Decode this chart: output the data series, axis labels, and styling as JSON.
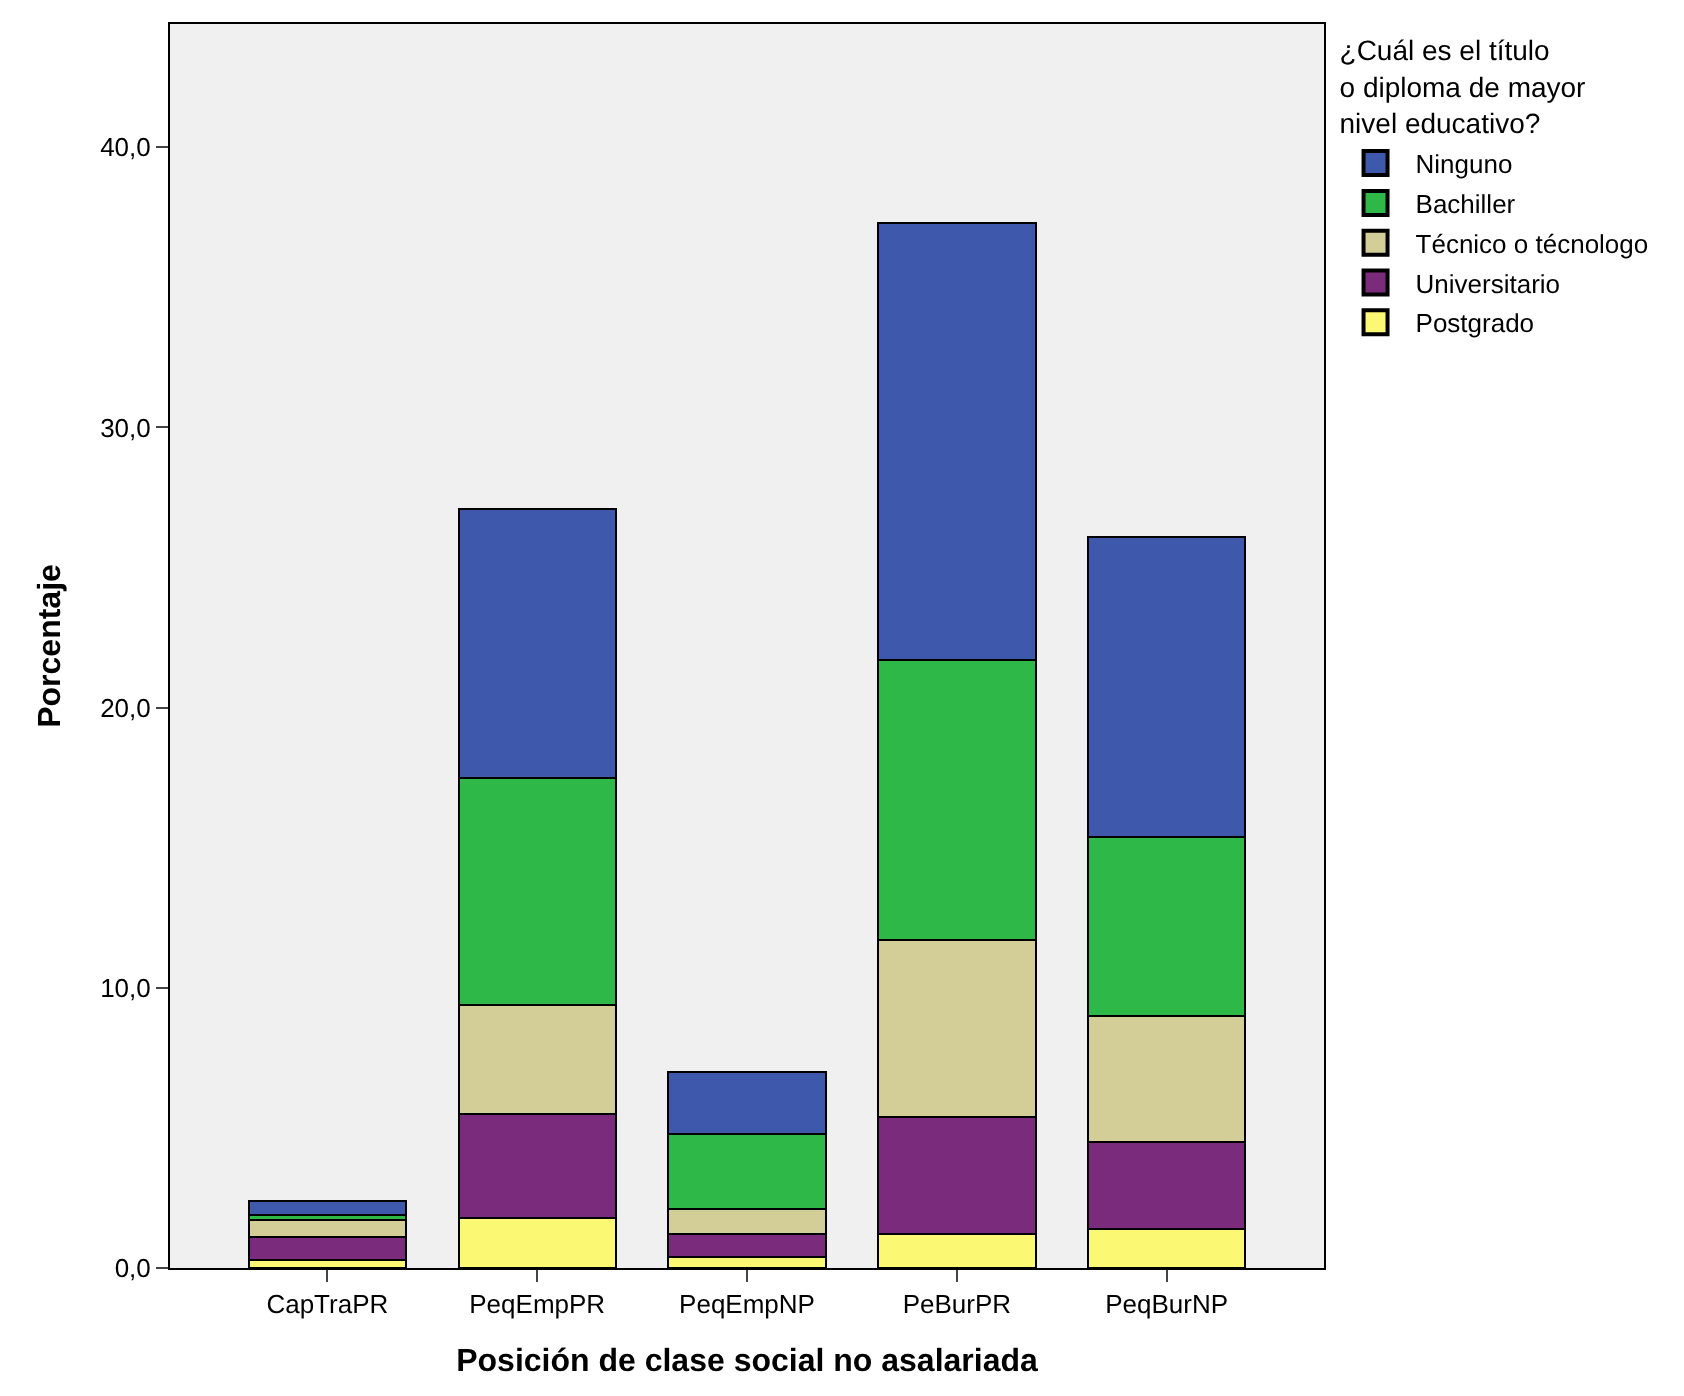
{
  "chart_data": {
    "type": "bar",
    "stacked": true,
    "xlabel": "Posición de clase social no asalariada",
    "ylabel": "Porcentaje",
    "legend_title": "¿Cuál es el título o diploma de mayor nivel educativo?",
    "legend": "top right",
    "grid": false,
    "categories": [
      "CapTraPR",
      "PeqEmpPR",
      "PeqEmpNP",
      "PeBurPR",
      "PeqBurNP"
    ],
    "ylim": [
      0,
      44.4
    ],
    "yticks": [
      {
        "value": 0,
        "label": "0,0"
      },
      {
        "value": 10,
        "label": "10,0"
      },
      {
        "value": 20,
        "label": "20,0"
      },
      {
        "value": 30,
        "label": "30,0"
      },
      {
        "value": 40,
        "label": "40,0"
      }
    ],
    "series": [
      {
        "name": "Postgrado",
        "color": "#fbf873",
        "values": [
          0.3,
          1.8,
          0.4,
          1.2,
          1.4
        ]
      },
      {
        "name": "Universitario",
        "color": "#7b2b7b",
        "values": [
          0.8,
          3.7,
          0.8,
          4.2,
          3.1
        ]
      },
      {
        "name": "Técnico o técnologo",
        "color": "#d3ce97",
        "values": [
          0.6,
          3.9,
          0.9,
          6.3,
          4.5
        ]
      },
      {
        "name": "Bachiller",
        "color": "#2eb848",
        "values": [
          0.2,
          8.1,
          2.7,
          10.0,
          6.4
        ]
      },
      {
        "name": "Ninguno",
        "color": "#3e58ac",
        "values": [
          0.5,
          9.6,
          2.2,
          15.6,
          10.7
        ]
      }
    ]
  }
}
